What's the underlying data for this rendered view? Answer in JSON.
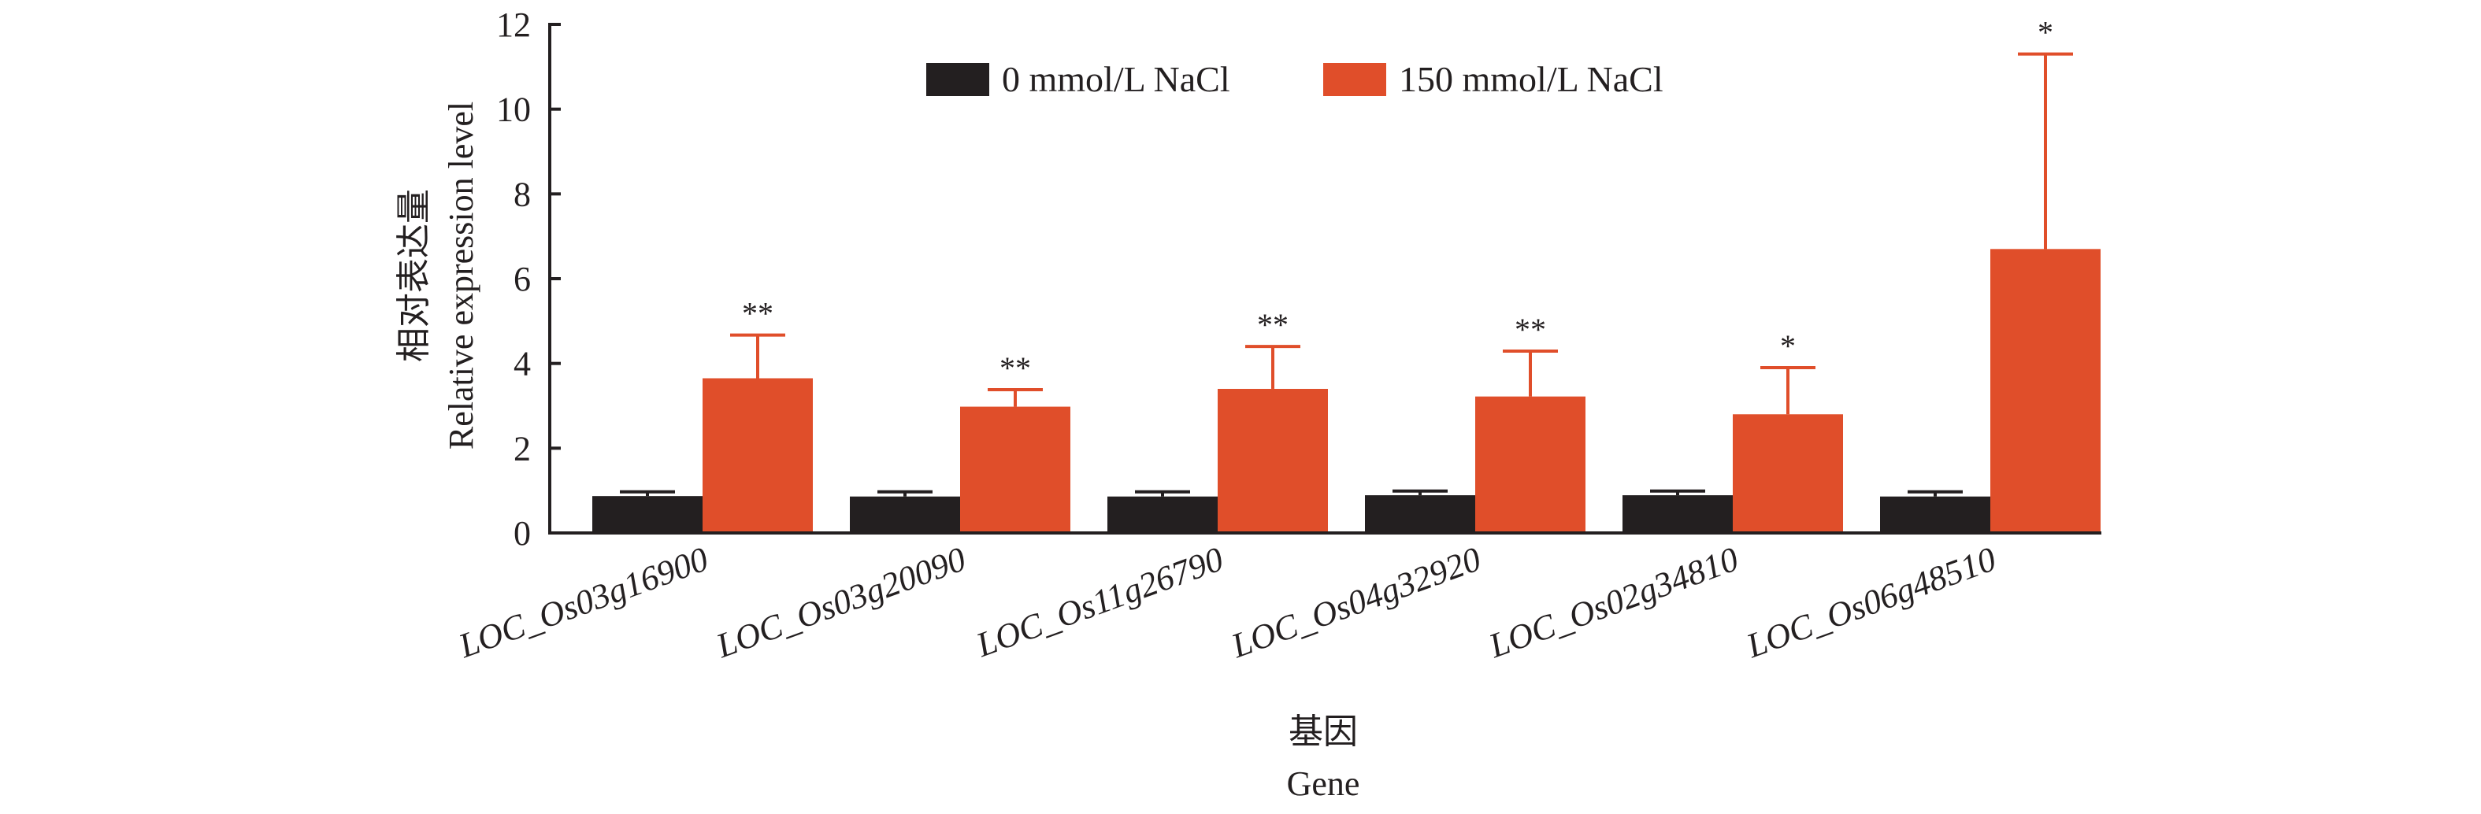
{
  "chart_data": {
    "type": "bar",
    "title": "",
    "xlabel": "基因",
    "xlabel_en": "Gene",
    "ylabel": "相对表达量",
    "ylabel_en": "Relative expression level",
    "ylim": [
      0,
      12
    ],
    "yticks": [
      0,
      2,
      4,
      6,
      8,
      10,
      12
    ],
    "grid": false,
    "legend_position": "top-center",
    "categories": [
      "LOC_Os03g16900",
      "LOC_Os03g20090",
      "LOC_Os11g26790",
      "LOC_Os04g32920",
      "LOC_Os02g34810",
      "LOC_Os06g48510"
    ],
    "series": [
      {
        "name": "0 mmol/L NaCl",
        "color": "#231f20",
        "values": [
          0.87,
          0.86,
          0.86,
          0.89,
          0.89,
          0.86
        ],
        "error_upper": [
          0.97,
          0.97,
          0.97,
          0.99,
          0.99,
          0.97
        ]
      },
      {
        "name": "150 mmol/L NaCl",
        "color": "#e04e2a",
        "values": [
          3.65,
          2.98,
          3.4,
          3.22,
          2.8,
          6.7
        ],
        "error_upper": [
          4.67,
          3.38,
          4.4,
          4.29,
          3.9,
          11.3
        ]
      }
    ],
    "significance": [
      "**",
      "**",
      "**",
      "**",
      "*",
      "*"
    ]
  }
}
